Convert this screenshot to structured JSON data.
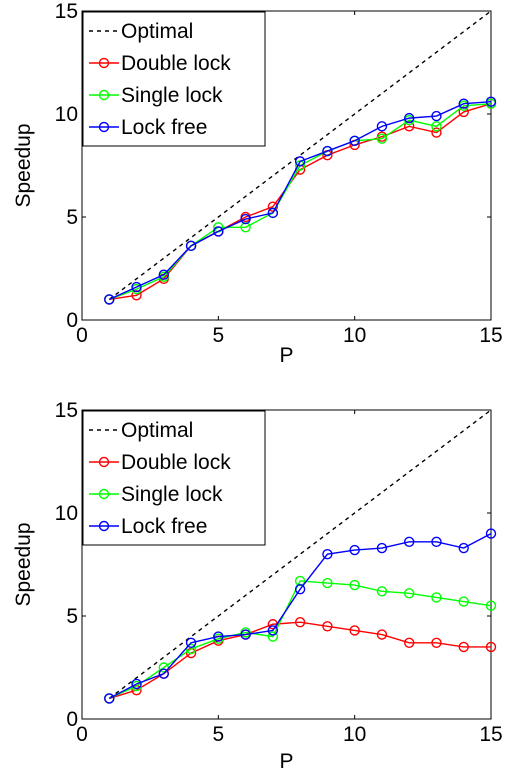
{
  "colors": {
    "optimal": "#000000",
    "double_lock": "#ff0000",
    "single_lock": "#00ff00",
    "lock_free": "#0000ff"
  },
  "chart_data": [
    {
      "type": "line",
      "xlabel": "P",
      "ylabel": "Speedup",
      "xlim": [
        0,
        15
      ],
      "ylim": [
        0,
        15
      ],
      "xticks": [
        0,
        5,
        10,
        15
      ],
      "yticks": [
        0,
        5,
        10,
        15
      ],
      "legend_position": "top-left",
      "grid": false,
      "series": [
        {
          "name": "Optimal",
          "style": "dashed",
          "marker": "none",
          "x": [
            1,
            15
          ],
          "values": [
            1,
            15
          ]
        },
        {
          "name": "Double lock",
          "style": "solid",
          "marker": "circle",
          "x": [
            1,
            2,
            3,
            4,
            5,
            6,
            7,
            8,
            9,
            10,
            11,
            12,
            13,
            14,
            15
          ],
          "values": [
            1.0,
            1.2,
            2.0,
            3.6,
            4.3,
            5.0,
            5.5,
            7.3,
            8.0,
            8.5,
            8.9,
            9.4,
            9.1,
            10.1,
            10.5
          ]
        },
        {
          "name": "Single lock",
          "style": "solid",
          "marker": "circle",
          "x": [
            1,
            2,
            3,
            4,
            5,
            6,
            7,
            8,
            9,
            10,
            11,
            12,
            13,
            14,
            15
          ],
          "values": [
            1.0,
            1.5,
            2.1,
            3.6,
            4.5,
            4.5,
            5.2,
            7.5,
            8.2,
            8.7,
            8.8,
            9.7,
            9.4,
            10.4,
            10.5
          ]
        },
        {
          "name": "Lock free",
          "style": "solid",
          "marker": "circle",
          "x": [
            1,
            2,
            3,
            4,
            5,
            6,
            7,
            8,
            9,
            10,
            11,
            12,
            13,
            14,
            15
          ],
          "values": [
            1.0,
            1.6,
            2.2,
            3.6,
            4.3,
            4.9,
            5.2,
            7.7,
            8.2,
            8.7,
            9.4,
            9.8,
            9.9,
            10.5,
            10.6
          ]
        }
      ]
    },
    {
      "type": "line",
      "xlabel": "P",
      "ylabel": "Speedup",
      "xlim": [
        0,
        15
      ],
      "ylim": [
        0,
        15
      ],
      "xticks": [
        0,
        5,
        10,
        15
      ],
      "yticks": [
        0,
        5,
        10,
        15
      ],
      "legend_position": "top-left",
      "grid": false,
      "series": [
        {
          "name": "Optimal",
          "style": "dashed",
          "marker": "none",
          "x": [
            1,
            15
          ],
          "values": [
            1,
            15
          ]
        },
        {
          "name": "Double lock",
          "style": "solid",
          "marker": "circle",
          "x": [
            1,
            2,
            3,
            4,
            5,
            6,
            7,
            8,
            9,
            10,
            11,
            12,
            13,
            14,
            15
          ],
          "values": [
            1.0,
            1.4,
            2.2,
            3.2,
            3.8,
            4.1,
            4.6,
            4.7,
            4.5,
            4.3,
            4.1,
            3.7,
            3.7,
            3.5,
            3.5
          ]
        },
        {
          "name": "Single lock",
          "style": "solid",
          "marker": "circle",
          "x": [
            1,
            2,
            3,
            4,
            5,
            6,
            7,
            8,
            9,
            10,
            11,
            12,
            13,
            14,
            15
          ],
          "values": [
            1.0,
            1.6,
            2.5,
            3.4,
            3.9,
            4.2,
            4.0,
            6.7,
            6.6,
            6.5,
            6.2,
            6.1,
            5.9,
            5.7,
            5.5
          ]
        },
        {
          "name": "Lock free",
          "style": "solid",
          "marker": "circle",
          "x": [
            1,
            2,
            3,
            4,
            5,
            6,
            7,
            8,
            9,
            10,
            11,
            12,
            13,
            14,
            15
          ],
          "values": [
            1.0,
            1.7,
            2.2,
            3.7,
            4.0,
            4.1,
            4.3,
            6.3,
            8.0,
            8.2,
            8.3,
            8.6,
            8.6,
            8.3,
            9.0
          ]
        }
      ]
    }
  ]
}
